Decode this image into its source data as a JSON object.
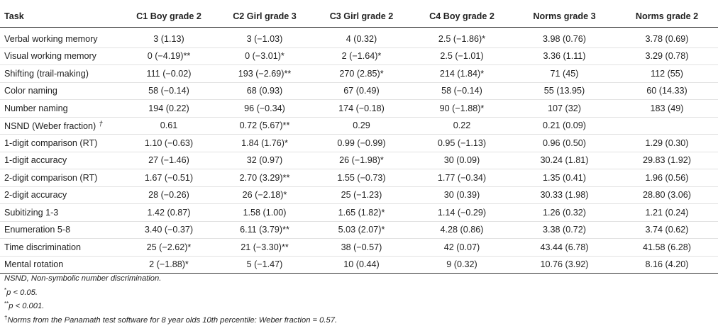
{
  "table": {
    "headers": [
      "Task",
      "C1 Boy grade 2",
      "C2 Girl grade 3",
      "C3 Girl grade 2",
      "C4 Boy grade 2",
      "Norms grade 3",
      "Norms grade 2"
    ],
    "rows": [
      {
        "task": "Verbal working memory",
        "c1": "3 (1.13)",
        "c2": "3 (−1.03)",
        "c3": "4 (0.32)",
        "c4": "2.5 (−1.86)*",
        "n3": "3.98 (0.76)",
        "n2": "3.78 (0.69)"
      },
      {
        "task": "Visual working memory",
        "c1": "0 (−4.19)**",
        "c2": "0 (−3.01)*",
        "c3": "2 (−1.64)*",
        "c4": "2.5 (−1.01)",
        "n3": "3.36 (1.11)",
        "n2": "3.29 (0.78)"
      },
      {
        "task": "Shifting (trail-making)",
        "c1": "111 (−0.02)",
        "c2": "193 (−2.69)**",
        "c3": "270 (2.85)*",
        "c4": "214 (1.84)*",
        "n3": "71 (45)",
        "n2": "112 (55)"
      },
      {
        "task": "Color naming",
        "c1": "58 (−0.14)",
        "c2": "68 (0.93)",
        "c3": "67 (0.49)",
        "c4": "58 (−0.14)",
        "n3": "55 (13.95)",
        "n2": "60 (14.33)"
      },
      {
        "task": "Number naming",
        "c1": "194 (0.22)",
        "c2": "96 (−0.34)",
        "c3": "174 (−0.18)",
        "c4": "90 (−1.88)*",
        "n3": "107 (32)",
        "n2": "183 (49)"
      },
      {
        "task": "NSND (Weber fraction)",
        "dagger": "†",
        "c1": "0.61",
        "c2": "0.72 (5.67)**",
        "c3": "0.29",
        "c4": "0.22",
        "n3": "0.21 (0.09)",
        "n2": ""
      },
      {
        "task": "1-digit comparison (RT)",
        "c1": "1.10 (−0.63)",
        "c2": "1.84 (1.76)*",
        "c3": "0.99 (−0.99)",
        "c4": "0.95 (−1.13)",
        "n3": "0.96 (0.50)",
        "n2": "1.29 (0.30)"
      },
      {
        "task": "1-digit accuracy",
        "c1": "27 (−1.46)",
        "c2": "32 (0.97)",
        "c3": "26 (−1.98)*",
        "c4": "30 (0.09)",
        "n3": "30.24 (1.81)",
        "n2": "29.83 (1.92)"
      },
      {
        "task": "2-digit comparison (RT)",
        "c1": "1.67 (−0.51)",
        "c2": "2.70 (3.29)**",
        "c3": "1.55 (−0.73)",
        "c4": "1.77 (−0.34)",
        "n3": "1.35 (0.41)",
        "n2": "1.96 (0.56)"
      },
      {
        "task": "2-digit accuracy",
        "c1": "28 (−0.26)",
        "c2": "26 (−2.18)*",
        "c3": "25 (−1.23)",
        "c4": "30 (0.39)",
        "n3": "30.33 (1.98)",
        "n2": "28.80 (3.06)"
      },
      {
        "task": "Subitizing 1-3",
        "c1": "1.42 (0.87)",
        "c2": "1.58 (1.00)",
        "c3": "1.65 (1.82)*",
        "c4": "1.14 (−0.29)",
        "n3": "1.26 (0.32)",
        "n2": "1.21 (0.24)"
      },
      {
        "task": "Enumeration 5-8",
        "c1": "3.40 (−0.37)",
        "c2": "6.11 (3.79)**",
        "c3": "5.03 (2.07)*",
        "c4": "4.28 (0.86)",
        "n3": "3.38 (0.72)",
        "n2": "3.74 (0.62)"
      },
      {
        "task": "Time discrimination",
        "c1": "25 (−2.62)*",
        "c2": "21 (−3.30)**",
        "c3": "38 (−0.57)",
        "c4": "42 (0.07)",
        "n3": "43.44 (6.78)",
        "n2": "41.58 (6.28)"
      },
      {
        "task": "Mental rotation",
        "c1": "2 (−1.88)*",
        "c2": "5 (−1.47)",
        "c3": "10 (0.44)",
        "c4": "9 (0.32)",
        "n3": "10.76 (3.92)",
        "n2": "8.16 (4.20)"
      }
    ]
  },
  "notes": {
    "nsnd": "NSND, Non-symbolic number discrimination.",
    "p1_mark": "*",
    "p1": "p < 0.05.",
    "p2_mark": "**",
    "p2": "p < 0.001.",
    "dagger_mark": "†",
    "dagger": "Norms from the Panamath test software for 8 year olds 10th percentile: Weber fraction = 0.57."
  }
}
